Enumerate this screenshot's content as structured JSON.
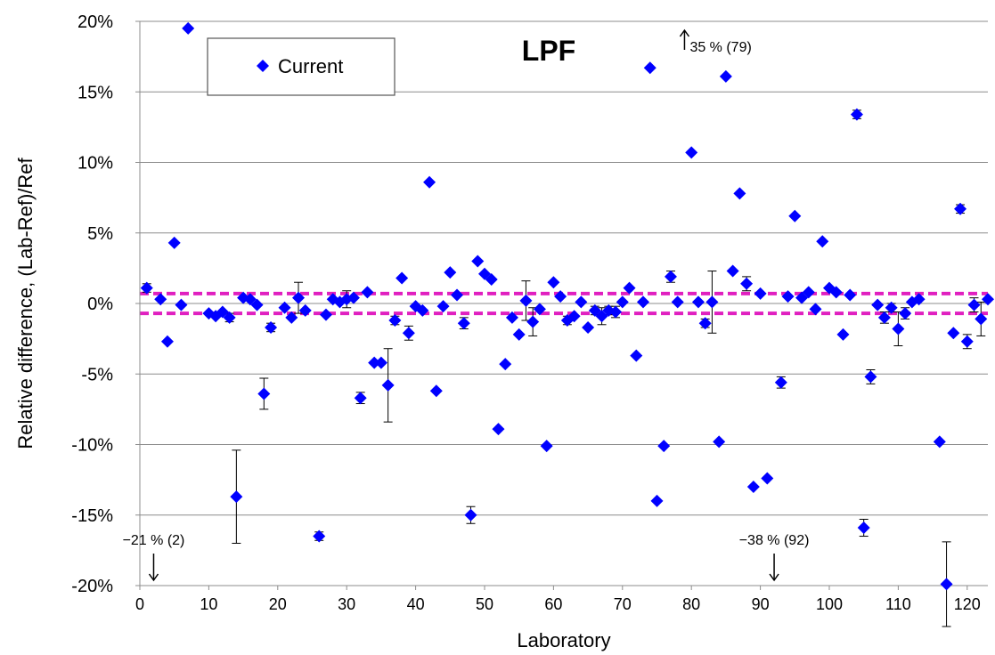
{
  "chart_data": {
    "type": "scatter",
    "title": "LPF",
    "xlabel": "Laboratory",
    "ylabel": "Relative difference, (Lab-Ref)/Ref",
    "xlim": [
      0,
      123
    ],
    "ylim": [
      -20,
      20
    ],
    "x_ticks": [
      0,
      10,
      20,
      30,
      40,
      50,
      60,
      70,
      80,
      90,
      100,
      110,
      120
    ],
    "y_ticks": [
      20,
      15,
      10,
      5,
      0,
      -5,
      -10,
      -15,
      -20
    ],
    "y_tick_labels": [
      "20%",
      "15%",
      "10%",
      "5%",
      "0%",
      "-5%",
      "-10%",
      "-15%",
      "-20%"
    ],
    "grid": "horizontal",
    "reference_lines": [
      0.7,
      -0.7
    ],
    "reference_line_color": "#e020c0",
    "series": [
      {
        "name": "Current",
        "color": "#0000ff",
        "points": [
          [
            1,
            1.1,
            0.3
          ],
          [
            3,
            0.3,
            0.2
          ],
          [
            4,
            -2.7,
            0.2
          ],
          [
            5,
            4.3,
            0.2
          ],
          [
            6,
            -0.1,
            0.2
          ],
          [
            7,
            19.5,
            0.2
          ],
          [
            10,
            -0.7,
            0.2
          ],
          [
            11,
            -0.9,
            0.2
          ],
          [
            12,
            -0.6,
            0.2
          ],
          [
            13,
            -1.0,
            0.3
          ],
          [
            14,
            -13.7,
            3.3
          ],
          [
            15,
            0.4,
            0.2
          ],
          [
            16,
            0.3,
            0.2
          ],
          [
            17,
            -0.1,
            0.2
          ],
          [
            18,
            -6.4,
            1.1
          ],
          [
            19,
            -1.7,
            0.3
          ],
          [
            21,
            -0.3,
            0.2
          ],
          [
            22,
            -1.0,
            0.2
          ],
          [
            23,
            0.4,
            1.1
          ],
          [
            24,
            -0.5,
            0.2
          ],
          [
            26,
            -16.5,
            0.3
          ],
          [
            27,
            -0.8,
            0.2
          ],
          [
            28,
            0.3,
            0.2
          ],
          [
            29,
            0.1,
            0.2
          ],
          [
            30,
            0.3,
            0.6
          ],
          [
            31,
            0.4,
            0.2
          ],
          [
            32,
            -6.7,
            0.4
          ],
          [
            33,
            0.8,
            0.2
          ],
          [
            34,
            -4.2,
            0.2
          ],
          [
            35,
            -4.2,
            0.2
          ],
          [
            36,
            -5.8,
            2.6
          ],
          [
            37,
            -1.2,
            0.3
          ],
          [
            38,
            1.8,
            0.2
          ],
          [
            39,
            -2.1,
            0.5
          ],
          [
            40,
            -0.2,
            0.2
          ],
          [
            41,
            -0.5,
            0.2
          ],
          [
            42,
            8.6,
            0.2
          ],
          [
            43,
            -6.2,
            0.2
          ],
          [
            44,
            -0.2,
            0.2
          ],
          [
            45,
            2.2,
            0.2
          ],
          [
            46,
            0.6,
            0.2
          ],
          [
            47,
            -1.4,
            0.4
          ],
          [
            48,
            -15.0,
            0.6
          ],
          [
            49,
            3.0,
            0.2
          ],
          [
            50,
            2.1,
            0.2
          ],
          [
            51,
            1.7,
            0.2
          ],
          [
            52,
            -8.9,
            0.2
          ],
          [
            53,
            -4.3,
            0.2
          ],
          [
            54,
            -1.0,
            0.2
          ],
          [
            55,
            -2.2,
            0.2
          ],
          [
            56,
            0.2,
            1.4
          ],
          [
            57,
            -1.3,
            1.0
          ],
          [
            58,
            -0.4,
            0.2
          ],
          [
            59,
            -10.1,
            0.2
          ],
          [
            60,
            1.5,
            0.2
          ],
          [
            61,
            0.5,
            0.2
          ],
          [
            62,
            -1.2,
            0.3
          ],
          [
            63,
            -0.9,
            0.2
          ],
          [
            64,
            0.1,
            0.2
          ],
          [
            65,
            -1.7,
            0.2
          ],
          [
            66,
            -0.5,
            0.3
          ],
          [
            67,
            -0.9,
            0.6
          ],
          [
            68,
            -0.5,
            0.3
          ],
          [
            69,
            -0.6,
            0.4
          ],
          [
            70,
            0.1,
            0.2
          ],
          [
            71,
            1.1,
            0.2
          ],
          [
            72,
            -3.7,
            0.2
          ],
          [
            73,
            0.1,
            0.2
          ],
          [
            74,
            16.7,
            0.2
          ],
          [
            75,
            -14.0,
            0.2
          ],
          [
            76,
            -10.1,
            0.2
          ],
          [
            77,
            1.9,
            0.4
          ],
          [
            78,
            0.1,
            0.2
          ],
          [
            80,
            10.7,
            0.2
          ],
          [
            81,
            0.1,
            0.2
          ],
          [
            82,
            -1.4,
            0.3
          ],
          [
            83,
            0.1,
            2.2
          ],
          [
            84,
            -9.8,
            0.2
          ],
          [
            85,
            16.1,
            0.2
          ],
          [
            86,
            2.3,
            0.2
          ],
          [
            87,
            7.8,
            0.2
          ],
          [
            88,
            1.4,
            0.5
          ],
          [
            89,
            -13.0,
            0.2
          ],
          [
            90,
            0.7,
            0.2
          ],
          [
            91,
            -12.4,
            0.2
          ],
          [
            93,
            -5.6,
            0.4
          ],
          [
            94,
            0.5,
            0.2
          ],
          [
            95,
            6.2,
            0.2
          ],
          [
            96,
            0.4,
            0.2
          ],
          [
            97,
            0.8,
            0.2
          ],
          [
            98,
            -0.4,
            0.2
          ],
          [
            99,
            4.4,
            0.2
          ],
          [
            100,
            1.1,
            0.2
          ],
          [
            101,
            0.8,
            0.2
          ],
          [
            102,
            -2.2,
            0.2
          ],
          [
            103,
            0.6,
            0.2
          ],
          [
            104,
            13.4,
            0.3
          ],
          [
            105,
            -15.9,
            0.6
          ],
          [
            106,
            -5.2,
            0.5
          ],
          [
            107,
            -0.1,
            0.2
          ],
          [
            108,
            -1.0,
            0.4
          ],
          [
            109,
            -0.3,
            0.3
          ],
          [
            110,
            -1.8,
            1.2
          ],
          [
            111,
            -0.7,
            0.4
          ],
          [
            112,
            0.1,
            0.2
          ],
          [
            113,
            0.3,
            0.2
          ],
          [
            116,
            -9.8,
            0.2
          ],
          [
            117,
            -19.9,
            3.0
          ],
          [
            118,
            -2.1,
            0.2
          ],
          [
            119,
            6.7,
            0.3
          ],
          [
            120,
            -2.7,
            0.5
          ],
          [
            121,
            -0.1,
            0.5
          ],
          [
            122,
            -1.1,
            1.2
          ],
          [
            123,
            0.3,
            0.2
          ]
        ]
      }
    ],
    "point_format": [
      "laboratory",
      "relative_difference_percent",
      "error_percent"
    ],
    "legend": {
      "position": "top-left",
      "entries": [
        "Current"
      ]
    },
    "annotations": [
      {
        "text": "35 % (79)",
        "x": 79,
        "y": 20,
        "arrow": "up"
      },
      {
        "text": "−21 % (2)",
        "x": 2,
        "y": -20,
        "arrow": "down"
      },
      {
        "text": "−38 % (92)",
        "x": 92,
        "y": -20,
        "arrow": "down"
      }
    ]
  }
}
